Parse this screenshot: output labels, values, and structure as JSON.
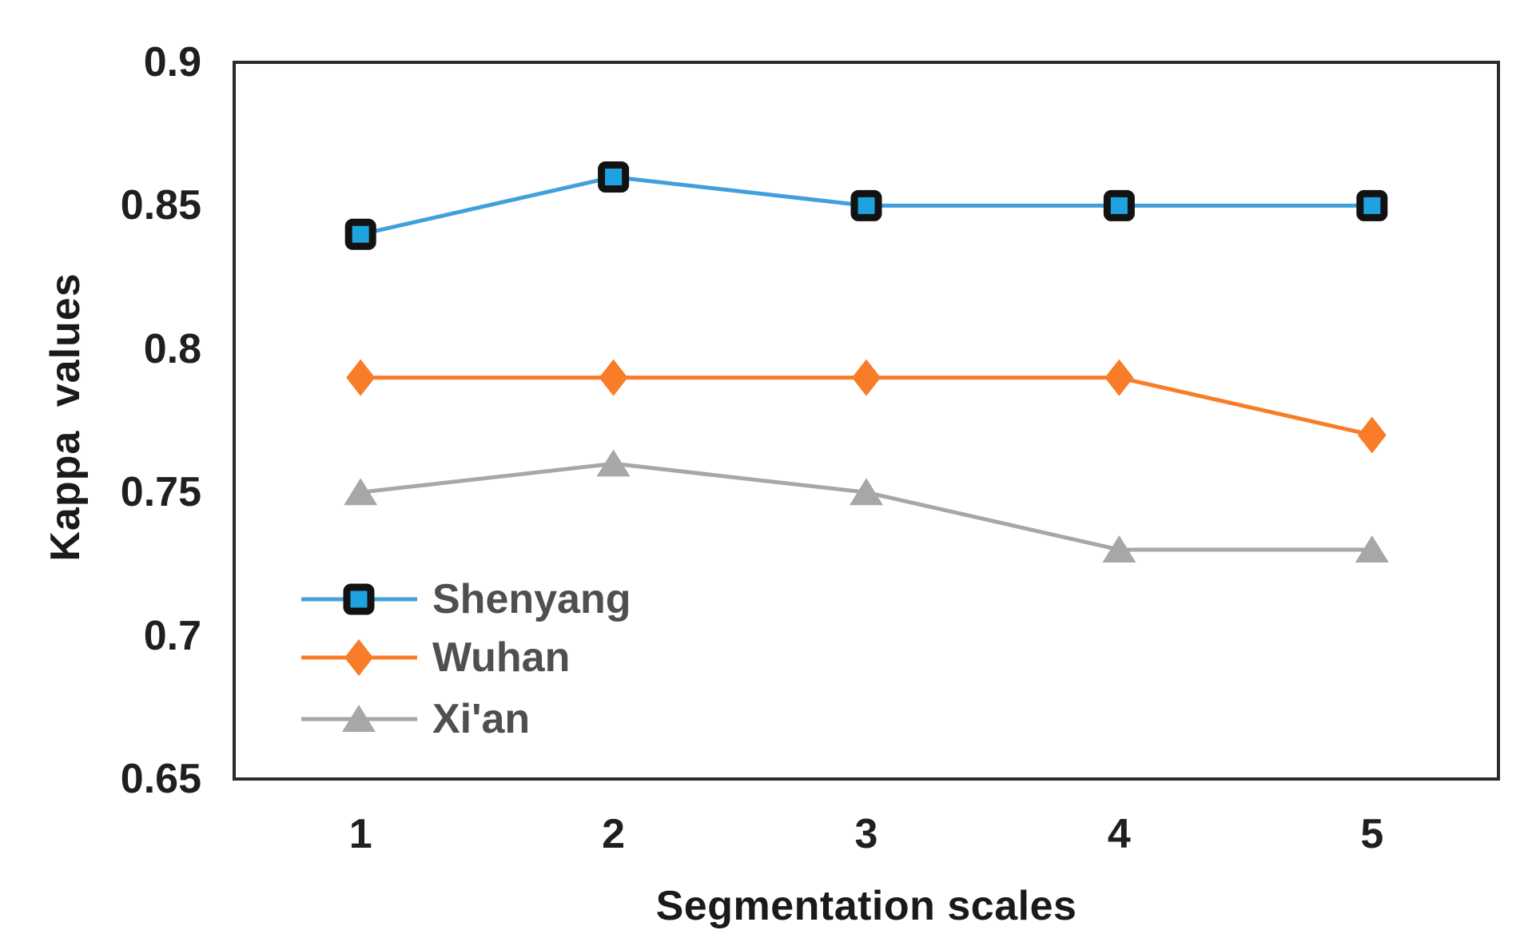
{
  "figure": {
    "background": "#ffffff",
    "text_color": "#1f1f1f",
    "axis_color": "#2b2b2b"
  },
  "chart_data": {
    "type": "line",
    "title": "",
    "xlabel": "Segmentation scales",
    "ylabel": "Kappa values",
    "categories": [
      "1",
      "2",
      "3",
      "4",
      "5"
    ],
    "x": [
      1,
      2,
      3,
      4,
      5
    ],
    "ylim": [
      0.65,
      0.9
    ],
    "yticks": [
      0.9,
      0.85,
      0.8,
      0.75,
      0.7,
      0.65
    ],
    "ytick_labels": [
      "0.9",
      "0.85",
      "0.8",
      "0.75",
      "0.7",
      "0.65"
    ],
    "grid": false,
    "legend_position": "inside-bottom-left",
    "series": [
      {
        "name": "Shenyang",
        "marker": "square",
        "line_color": "#3FA0DC",
        "marker_fill": "#1FA3E0",
        "marker_border": "#121212",
        "values": [
          0.84,
          0.86,
          0.85,
          0.85,
          0.85
        ]
      },
      {
        "name": "Wuhan",
        "marker": "diamond",
        "line_color": "#F97C28",
        "marker_fill": "#F97C28",
        "marker_border": "none",
        "values": [
          0.79,
          0.79,
          0.79,
          0.79,
          0.77
        ]
      },
      {
        "name": "Xi'an",
        "marker": "triangle",
        "line_color": "#A7A7A7",
        "marker_fill": "#A7A7A7",
        "marker_border": "none",
        "values": [
          0.75,
          0.76,
          0.75,
          0.73,
          0.73
        ]
      }
    ]
  }
}
